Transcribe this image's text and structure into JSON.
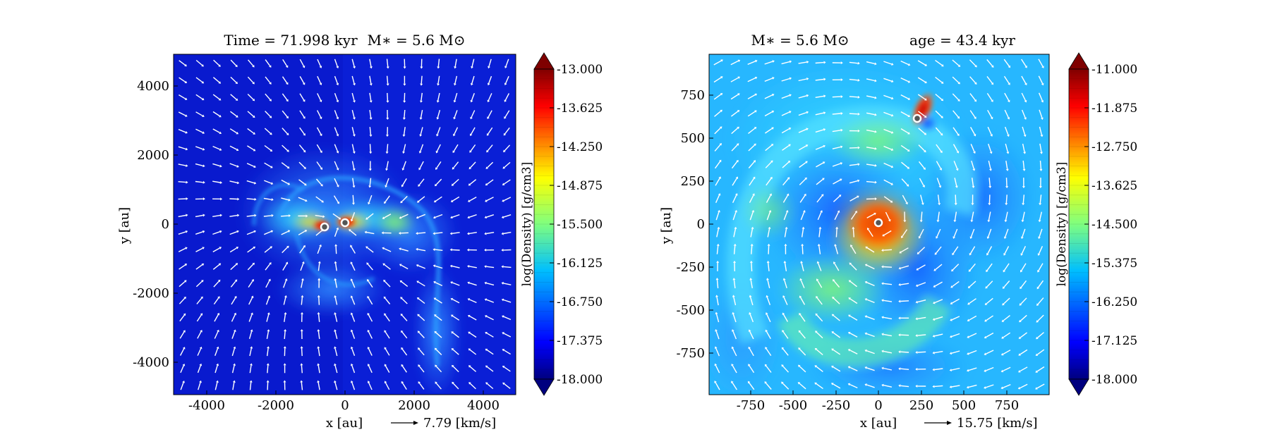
{
  "panels": [
    {
      "id": "left",
      "title_time": "Time = 71.998 kyr",
      "title_mass": "M∗ = 5.6 M⊙",
      "xlabel": "x [au]",
      "ylabel": "y [au]",
      "xticks": [
        "-4000",
        "-2000",
        "0",
        "2000",
        "4000"
      ],
      "yticks": [
        "4000",
        "2000",
        "0",
        "-2000",
        "-4000"
      ],
      "xlim": [
        -5000,
        5000
      ],
      "ylim": [
        -5000,
        5000
      ],
      "arrow_key": "7.79 [km/s]",
      "colorbar_label": "log(Density) [g/cm3]",
      "colorbar_ticks": [
        "-13.000",
        "-13.625",
        "-14.250",
        "-14.875",
        "-15.500",
        "-16.125",
        "-16.750",
        "-17.375",
        "-18.000"
      ]
    },
    {
      "id": "right",
      "title_mass": "M∗ = 5.6 M⊙",
      "title_age": "age = 43.4 kyr",
      "xlabel": "x [au]",
      "ylabel": "y [au]",
      "xticks": [
        "-750",
        "-500",
        "-250",
        "0",
        "250",
        "500",
        "750"
      ],
      "yticks": [
        "750",
        "500",
        "250",
        "0",
        "-250",
        "-500",
        "-750"
      ],
      "xlim": [
        -1000,
        1000
      ],
      "ylim": [
        -1000,
        1000
      ],
      "arrow_key": "15.75 [km/s]",
      "colorbar_label": "log(Density) [g/cm3]",
      "colorbar_ticks": [
        "-11.000",
        "-11.875",
        "-12.750",
        "-13.625",
        "-14.500",
        "-15.375",
        "-16.250",
        "-17.125",
        "-18.000"
      ]
    }
  ],
  "colors": {
    "jet_low": "#00008b",
    "jet_high": "#8b0000",
    "arrows": "#ffffff"
  }
}
